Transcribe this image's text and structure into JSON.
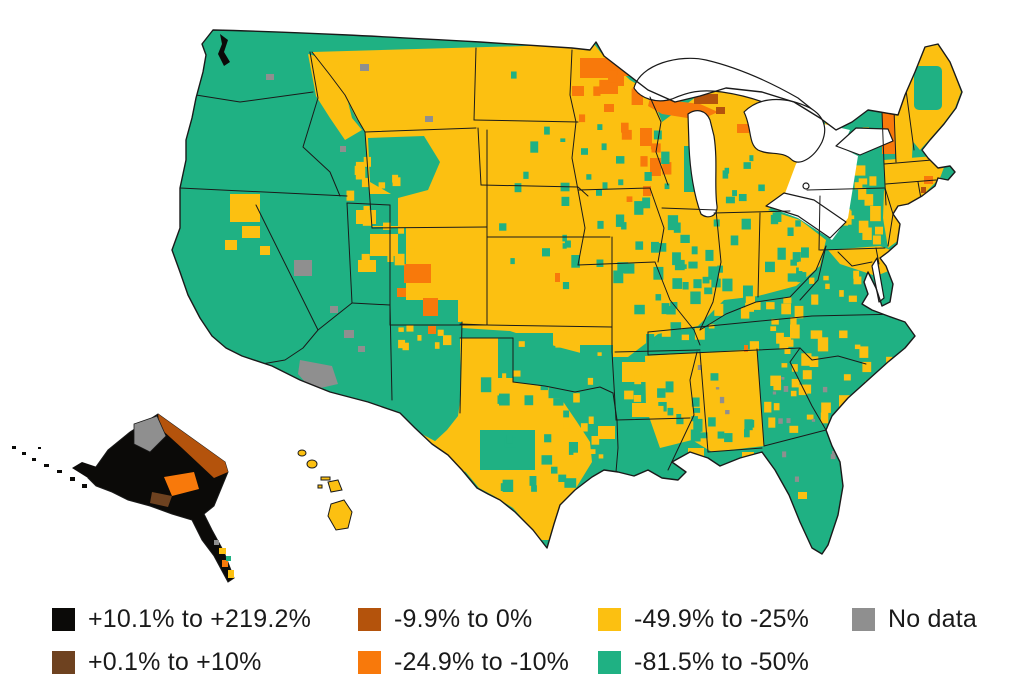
{
  "figure": {
    "kind": "county-choropleth-map",
    "region": "United States",
    "insets": [
      "Alaska",
      "Hawaii"
    ],
    "value_type": "percent change"
  },
  "palette": {
    "black": "#0b0a08",
    "brown": "#6e4220",
    "sienna": "#b4530c",
    "orange": "#f8790b",
    "yellow": "#fcc011",
    "teal": "#1fb183",
    "gray": "#8f8f8f",
    "outline": "#1a1a1a",
    "background": "#ffffff"
  },
  "legend": {
    "items": [
      {
        "label": "+10.1% to +219.2%",
        "color_key": "black",
        "color": "#0b0a08"
      },
      {
        "label": "+0.1% to +10%",
        "color_key": "brown",
        "color": "#6e4220"
      },
      {
        "label": "-9.9% to 0%",
        "color_key": "sienna",
        "color": "#b4530c"
      },
      {
        "label": "-24.9% to -10%",
        "color_key": "orange",
        "color": "#f8790b"
      },
      {
        "label": "-49.9% to -25%",
        "color_key": "yellow",
        "color": "#fcc011"
      },
      {
        "label": "-81.5% to -50%",
        "color_key": "teal",
        "color": "#1fb183"
      },
      {
        "label": "No data",
        "color_key": "gray",
        "color": "#8f8f8f"
      }
    ]
  },
  "map_summary": {
    "dominant_categories": [
      "-81.5% to -50%",
      "-49.9% to -25%"
    ],
    "teal_regions": "West Coast, Great Basin, Southwest, south Texas, Lower Mississippi, Appalachia, Florida, interior Northeast",
    "yellow_regions": "Northern Rockies, Great Plains, Upper Midwest, central Texas, Deep South belt, coastal Northeast",
    "orange_clusters": "northern Minnesota, Wisconsin, Michigan Upper Peninsula, central Colorado, Vermont",
    "positive_growth_area": "Alaska (black, brown)",
    "no_data_examples": "patches in Nevada, Arizona, Montana, northwest Alaska"
  }
}
